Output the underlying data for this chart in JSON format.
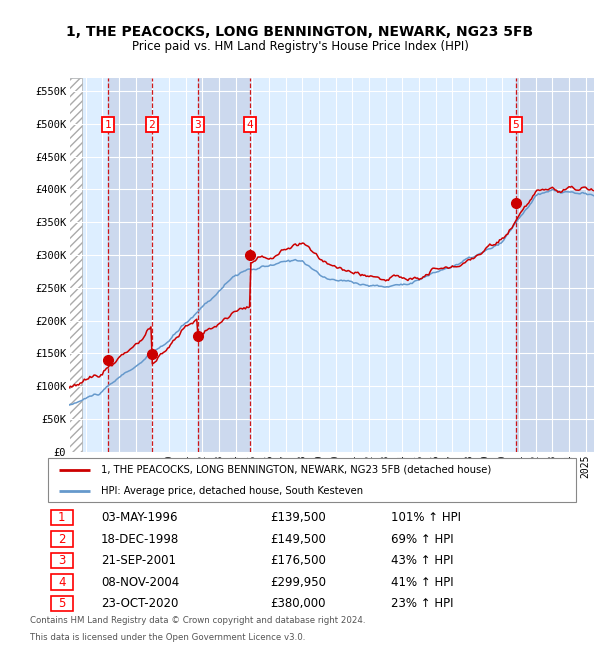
{
  "title": "1, THE PEACOCKS, LONG BENNINGTON, NEWARK, NG23 5FB",
  "subtitle": "Price paid vs. HM Land Registry's House Price Index (HPI)",
  "legend_line1": "1, THE PEACOCKS, LONG BENNINGTON, NEWARK, NG23 5FB (detached house)",
  "legend_line2": "HPI: Average price, detached house, South Kesteven",
  "footer1": "Contains HM Land Registry data © Crown copyright and database right 2024.",
  "footer2": "This data is licensed under the Open Government Licence v3.0.",
  "sales": [
    {
      "num": 1,
      "date": "03-MAY-1996",
      "date_dec": 1996.34,
      "price": 139500,
      "pct": "101%",
      "dir": "↑"
    },
    {
      "num": 2,
      "date": "18-DEC-1998",
      "date_dec": 1998.96,
      "price": 149500,
      "pct": "69%",
      "dir": "↑"
    },
    {
      "num": 3,
      "date": "21-SEP-2001",
      "date_dec": 2001.72,
      "price": 176500,
      "pct": "43%",
      "dir": "↑"
    },
    {
      "num": 4,
      "date": "08-NOV-2004",
      "date_dec": 2004.85,
      "price": 299950,
      "pct": "41%",
      "dir": "↑"
    },
    {
      "num": 5,
      "date": "23-OCT-2020",
      "date_dec": 2020.81,
      "price": 380000,
      "pct": "23%",
      "dir": "↑"
    }
  ],
  "ylim": [
    0,
    570000
  ],
  "xlim_start": 1994.0,
  "xlim_end": 2025.5,
  "hpi_color": "#6699cc",
  "property_color": "#cc0000",
  "sale_dot_color": "#cc0000",
  "bg_chart": "#ddeeff",
  "grid_color": "#ffffff",
  "dashed_line_color": "#cc0000"
}
